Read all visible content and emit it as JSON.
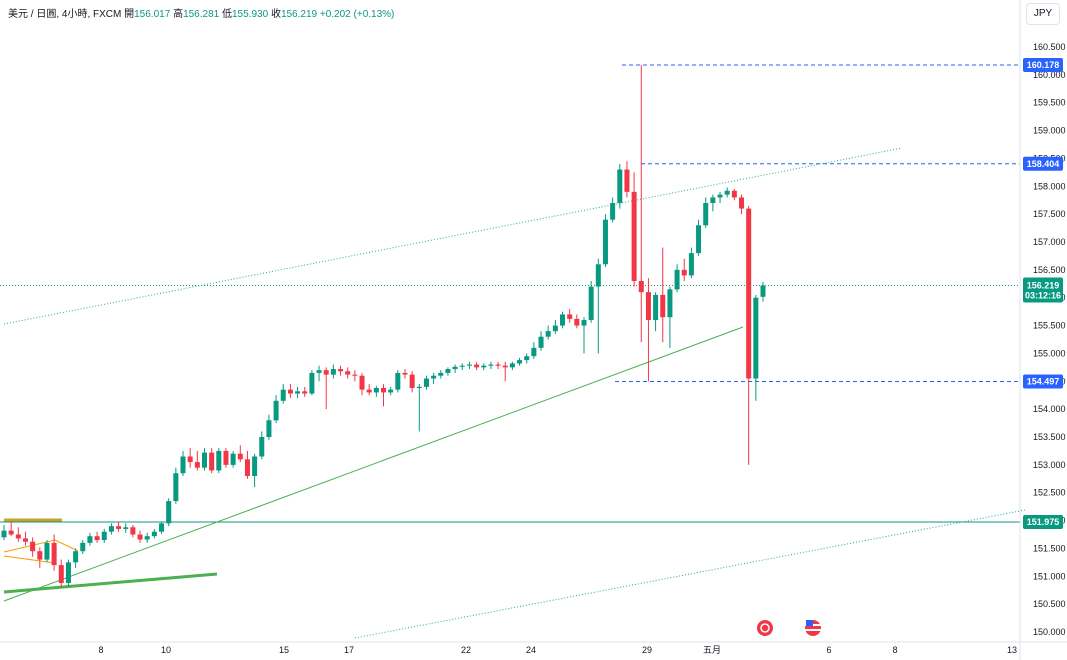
{
  "legend": {
    "symbol": "美元 / 日圓, 4小時, FXCM",
    "open_label": "開",
    "open": "156.017",
    "high_label": "高",
    "high": "156.281",
    "low_label": "低",
    "low": "155.930",
    "close_label": "收",
    "close": "156.219",
    "change": "+0.202 (+0.13%)"
  },
  "currency_button": "JPY",
  "colors": {
    "up": "#089981",
    "down": "#f23645",
    "badge_blue": "#2962ff",
    "support_green": "#089981",
    "trend_green": "#4caf50"
  },
  "chart_data": {
    "type": "candlestick",
    "y_axis": {
      "ylim": [
        149.95,
        160.7
      ],
      "ticks": [
        "150.000",
        "150.500",
        "151.000",
        "151.500",
        "152.000",
        "152.500",
        "153.000",
        "153.500",
        "154.000",
        "154.500",
        "155.000",
        "155.500",
        "156.000",
        "156.500",
        "157.000",
        "157.500",
        "158.000",
        "158.500",
        "159.000",
        "159.500",
        "160.000",
        "160.500"
      ]
    },
    "x_axis": {
      "ticks": [
        "8",
        "10",
        "15",
        "17",
        "22",
        "24",
        "29",
        "五月",
        "6",
        "8",
        "13"
      ]
    },
    "price_badges": [
      {
        "label": "160.178",
        "value": 160.178,
        "color": "#2962ff"
      },
      {
        "label": "158.404",
        "value": 158.404,
        "color": "#2962ff"
      },
      {
        "label": "154.497",
        "value": 154.497,
        "color": "#2962ff"
      },
      {
        "label": "151.975",
        "value": 151.975,
        "color": "#089981"
      }
    ],
    "last_price": {
      "label": "156.219",
      "countdown": "03:12:16",
      "value": 156.219,
      "color": "#089981"
    },
    "candles": [
      {
        "o": 151.7,
        "h": 151.92,
        "l": 151.65,
        "c": 151.82
      },
      {
        "o": 151.82,
        "h": 151.98,
        "l": 151.72,
        "c": 151.75
      },
      {
        "o": 151.75,
        "h": 151.88,
        "l": 151.62,
        "c": 151.68
      },
      {
        "o": 151.68,
        "h": 151.8,
        "l": 151.55,
        "c": 151.62
      },
      {
        "o": 151.62,
        "h": 151.7,
        "l": 151.35,
        "c": 151.45
      },
      {
        "o": 151.45,
        "h": 151.52,
        "l": 151.15,
        "c": 151.3
      },
      {
        "o": 151.3,
        "h": 151.65,
        "l": 151.25,
        "c": 151.6
      },
      {
        "o": 151.6,
        "h": 151.75,
        "l": 151.1,
        "c": 151.2
      },
      {
        "o": 151.2,
        "h": 151.3,
        "l": 150.8,
        "c": 150.88
      },
      {
        "o": 150.88,
        "h": 151.3,
        "l": 150.82,
        "c": 151.25
      },
      {
        "o": 151.25,
        "h": 151.5,
        "l": 151.15,
        "c": 151.45
      },
      {
        "o": 151.45,
        "h": 151.65,
        "l": 151.4,
        "c": 151.6
      },
      {
        "o": 151.6,
        "h": 151.78,
        "l": 151.55,
        "c": 151.72
      },
      {
        "o": 151.72,
        "h": 151.8,
        "l": 151.6,
        "c": 151.65
      },
      {
        "o": 151.65,
        "h": 151.85,
        "l": 151.6,
        "c": 151.8
      },
      {
        "o": 151.8,
        "h": 151.95,
        "l": 151.75,
        "c": 151.9
      },
      {
        "o": 151.9,
        "h": 151.98,
        "l": 151.8,
        "c": 151.85
      },
      {
        "o": 151.85,
        "h": 151.95,
        "l": 151.78,
        "c": 151.88
      },
      {
        "o": 151.88,
        "h": 151.92,
        "l": 151.7,
        "c": 151.75
      },
      {
        "o": 151.75,
        "h": 151.82,
        "l": 151.6,
        "c": 151.66
      },
      {
        "o": 151.66,
        "h": 151.78,
        "l": 151.6,
        "c": 151.72
      },
      {
        "o": 151.72,
        "h": 151.85,
        "l": 151.68,
        "c": 151.8
      },
      {
        "o": 151.8,
        "h": 151.98,
        "l": 151.76,
        "c": 151.95
      },
      {
        "o": 151.95,
        "h": 152.4,
        "l": 151.9,
        "c": 152.35
      },
      {
        "o": 152.35,
        "h": 152.95,
        "l": 152.3,
        "c": 152.85
      },
      {
        "o": 152.85,
        "h": 153.25,
        "l": 152.8,
        "c": 153.15
      },
      {
        "o": 153.15,
        "h": 153.3,
        "l": 152.95,
        "c": 153.05
      },
      {
        "o": 153.05,
        "h": 153.25,
        "l": 152.9,
        "c": 152.95
      },
      {
        "o": 152.95,
        "h": 153.3,
        "l": 152.9,
        "c": 153.22
      },
      {
        "o": 153.22,
        "h": 153.3,
        "l": 152.85,
        "c": 152.9
      },
      {
        "o": 152.9,
        "h": 153.3,
        "l": 152.85,
        "c": 153.25
      },
      {
        "o": 153.25,
        "h": 153.3,
        "l": 152.95,
        "c": 153.0
      },
      {
        "o": 153.0,
        "h": 153.25,
        "l": 152.95,
        "c": 153.2
      },
      {
        "o": 153.2,
        "h": 153.35,
        "l": 153.05,
        "c": 153.1
      },
      {
        "o": 153.1,
        "h": 153.25,
        "l": 152.75,
        "c": 152.8
      },
      {
        "o": 152.8,
        "h": 153.2,
        "l": 152.6,
        "c": 153.15
      },
      {
        "o": 153.15,
        "h": 153.6,
        "l": 153.1,
        "c": 153.5
      },
      {
        "o": 153.5,
        "h": 153.9,
        "l": 153.45,
        "c": 153.8
      },
      {
        "o": 153.8,
        "h": 154.25,
        "l": 153.75,
        "c": 154.15
      },
      {
        "o": 154.15,
        "h": 154.45,
        "l": 154.1,
        "c": 154.35
      },
      {
        "o": 154.35,
        "h": 154.45,
        "l": 154.2,
        "c": 154.28
      },
      {
        "o": 154.28,
        "h": 154.4,
        "l": 154.2,
        "c": 154.32
      },
      {
        "o": 154.32,
        "h": 154.4,
        "l": 154.22,
        "c": 154.28
      },
      {
        "o": 154.28,
        "h": 154.7,
        "l": 154.25,
        "c": 154.65
      },
      {
        "o": 154.65,
        "h": 154.78,
        "l": 154.5,
        "c": 154.7
      },
      {
        "o": 154.7,
        "h": 154.75,
        "l": 154.0,
        "c": 154.62
      },
      {
        "o": 154.62,
        "h": 154.8,
        "l": 154.55,
        "c": 154.72
      },
      {
        "o": 154.72,
        "h": 154.78,
        "l": 154.6,
        "c": 154.68
      },
      {
        "o": 154.68,
        "h": 154.75,
        "l": 154.55,
        "c": 154.62
      },
      {
        "o": 154.62,
        "h": 154.7,
        "l": 154.5,
        "c": 154.6
      },
      {
        "o": 154.6,
        "h": 154.65,
        "l": 154.25,
        "c": 154.35
      },
      {
        "o": 154.35,
        "h": 154.45,
        "l": 154.25,
        "c": 154.3
      },
      {
        "o": 154.3,
        "h": 154.42,
        "l": 154.22,
        "c": 154.38
      },
      {
        "o": 154.38,
        "h": 154.45,
        "l": 154.05,
        "c": 154.3
      },
      {
        "o": 154.3,
        "h": 154.4,
        "l": 154.25,
        "c": 154.35
      },
      {
        "o": 154.35,
        "h": 154.7,
        "l": 154.3,
        "c": 154.65
      },
      {
        "o": 154.65,
        "h": 154.72,
        "l": 154.55,
        "c": 154.62
      },
      {
        "o": 154.62,
        "h": 154.68,
        "l": 154.3,
        "c": 154.38
      },
      {
        "o": 154.38,
        "h": 154.45,
        "l": 153.6,
        "c": 154.4
      },
      {
        "o": 154.4,
        "h": 154.6,
        "l": 154.35,
        "c": 154.55
      },
      {
        "o": 154.55,
        "h": 154.65,
        "l": 154.45,
        "c": 154.6
      },
      {
        "o": 154.6,
        "h": 154.7,
        "l": 154.55,
        "c": 154.65
      },
      {
        "o": 154.65,
        "h": 154.75,
        "l": 154.6,
        "c": 154.72
      },
      {
        "o": 154.72,
        "h": 154.8,
        "l": 154.65,
        "c": 154.76
      },
      {
        "o": 154.76,
        "h": 154.82,
        "l": 154.7,
        "c": 154.78
      },
      {
        "o": 154.78,
        "h": 154.85,
        "l": 154.72,
        "c": 154.8
      },
      {
        "o": 154.8,
        "h": 154.85,
        "l": 154.7,
        "c": 154.75
      },
      {
        "o": 154.75,
        "h": 154.82,
        "l": 154.7,
        "c": 154.78
      },
      {
        "o": 154.78,
        "h": 154.85,
        "l": 154.72,
        "c": 154.8
      },
      {
        "o": 154.8,
        "h": 154.85,
        "l": 154.72,
        "c": 154.78
      },
      {
        "o": 154.78,
        "h": 154.85,
        "l": 154.5,
        "c": 154.75
      },
      {
        "o": 154.75,
        "h": 154.85,
        "l": 154.7,
        "c": 154.82
      },
      {
        "o": 154.82,
        "h": 154.92,
        "l": 154.78,
        "c": 154.88
      },
      {
        "o": 154.88,
        "h": 155.0,
        "l": 154.82,
        "c": 154.95
      },
      {
        "o": 154.95,
        "h": 155.2,
        "l": 154.9,
        "c": 155.1
      },
      {
        "o": 155.1,
        "h": 155.4,
        "l": 155.05,
        "c": 155.3
      },
      {
        "o": 155.3,
        "h": 155.5,
        "l": 155.25,
        "c": 155.4
      },
      {
        "o": 155.4,
        "h": 155.6,
        "l": 155.35,
        "c": 155.5
      },
      {
        "o": 155.5,
        "h": 155.75,
        "l": 155.45,
        "c": 155.7
      },
      {
        "o": 155.7,
        "h": 155.8,
        "l": 155.55,
        "c": 155.62
      },
      {
        "o": 155.62,
        "h": 155.7,
        "l": 155.45,
        "c": 155.5
      },
      {
        "o": 155.5,
        "h": 155.65,
        "l": 155.0,
        "c": 155.6
      },
      {
        "o": 155.6,
        "h": 156.3,
        "l": 155.55,
        "c": 156.2
      },
      {
        "o": 156.2,
        "h": 156.7,
        "l": 155.0,
        "c": 156.6
      },
      {
        "o": 156.6,
        "h": 157.5,
        "l": 156.55,
        "c": 157.4
      },
      {
        "o": 157.4,
        "h": 157.8,
        "l": 157.35,
        "c": 157.7
      },
      {
        "o": 157.7,
        "h": 158.4,
        "l": 157.6,
        "c": 158.3
      },
      {
        "o": 158.3,
        "h": 158.45,
        "l": 157.8,
        "c": 157.9
      },
      {
        "o": 157.9,
        "h": 158.25,
        "l": 156.2,
        "c": 156.3
      },
      {
        "o": 156.3,
        "h": 160.178,
        "l": 155.2,
        "c": 156.1
      },
      {
        "o": 156.1,
        "h": 156.35,
        "l": 154.5,
        "c": 155.6
      },
      {
        "o": 155.6,
        "h": 156.1,
        "l": 155.4,
        "c": 156.05
      },
      {
        "o": 156.05,
        "h": 156.9,
        "l": 155.2,
        "c": 155.65
      },
      {
        "o": 155.65,
        "h": 156.2,
        "l": 155.1,
        "c": 156.15
      },
      {
        "o": 156.15,
        "h": 156.6,
        "l": 156.1,
        "c": 156.5
      },
      {
        "o": 156.5,
        "h": 156.7,
        "l": 156.3,
        "c": 156.4
      },
      {
        "o": 156.4,
        "h": 156.9,
        "l": 156.35,
        "c": 156.8
      },
      {
        "o": 156.8,
        "h": 157.4,
        "l": 156.75,
        "c": 157.3
      },
      {
        "o": 157.3,
        "h": 157.8,
        "l": 157.25,
        "c": 157.7
      },
      {
        "o": 157.7,
        "h": 157.85,
        "l": 157.55,
        "c": 157.8
      },
      {
        "o": 157.8,
        "h": 157.9,
        "l": 157.7,
        "c": 157.85
      },
      {
        "o": 157.85,
        "h": 157.98,
        "l": 157.8,
        "c": 157.92
      },
      {
        "o": 157.92,
        "h": 157.95,
        "l": 157.75,
        "c": 157.8
      },
      {
        "o": 157.8,
        "h": 157.85,
        "l": 157.5,
        "c": 157.6
      },
      {
        "o": 157.6,
        "h": 157.65,
        "l": 153.0,
        "c": 154.55
      },
      {
        "o": 154.55,
        "h": 156.05,
        "l": 154.15,
        "c": 156.0
      },
      {
        "o": 156.017,
        "h": 156.281,
        "l": 155.93,
        "c": 156.219
      }
    ]
  }
}
